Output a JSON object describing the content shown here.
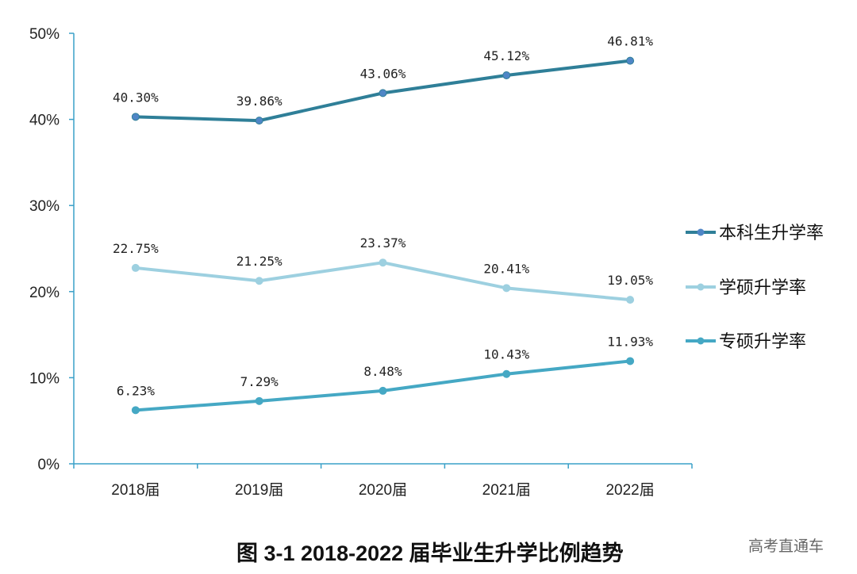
{
  "chart_data": {
    "type": "line",
    "title": "图 3-1   2018-2022 届毕业生升学比例趋势",
    "categories": [
      "2018届",
      "2019届",
      "2020届",
      "2021届",
      "2022届"
    ],
    "ylim": [
      0,
      50
    ],
    "yticks": [
      "0%",
      "10%",
      "20%",
      "30%",
      "40%",
      "50%"
    ],
    "grid": false,
    "legend_position": "right",
    "series": [
      {
        "name": "本科生升学率",
        "values": [
          40.3,
          39.86,
          43.06,
          45.12,
          46.81
        ],
        "labels": [
          "40.30%",
          "39.86%",
          "43.06%",
          "45.12%",
          "46.81%"
        ],
        "color": "#2f7f98",
        "marker_color": "#4f86c6"
      },
      {
        "name": "学硕升学率",
        "values": [
          22.75,
          21.25,
          23.37,
          20.41,
          19.05
        ],
        "labels": [
          "22.75%",
          "21.25%",
          "23.37%",
          "20.41%",
          "19.05%"
        ],
        "color": "#9dd0e0",
        "marker_color": "#9dd0e0"
      },
      {
        "name": "专硕升学率",
        "values": [
          6.23,
          7.29,
          8.48,
          10.43,
          11.93
        ],
        "labels": [
          "6.23%",
          "7.29%",
          "8.48%",
          "10.43%",
          "11.93%"
        ],
        "color": "#45a8c4",
        "marker_color": "#45a8c4"
      }
    ],
    "axis_color": "#3aa0c8"
  },
  "watermark": "高考直通车"
}
